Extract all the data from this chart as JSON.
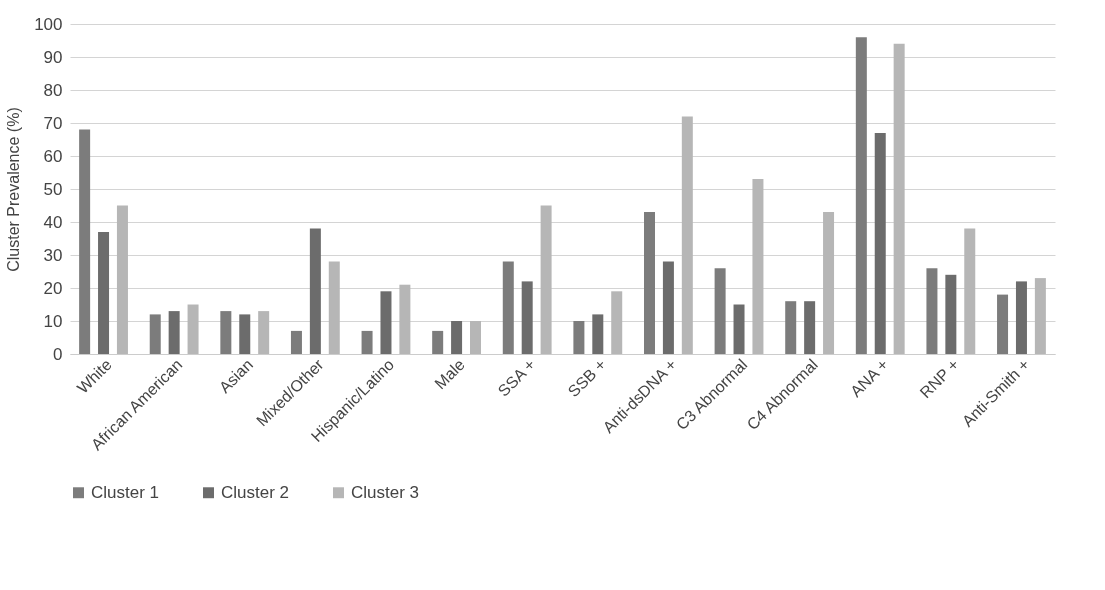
{
  "chart_data": {
    "type": "bar",
    "ylabel": "Cluster Prevalence (%)",
    "categories": [
      "White",
      "African American",
      "Asian",
      "Mixed/Other",
      "Hispanic/Latino",
      "Male",
      "SSA +",
      "SSB +",
      "Anti-dsDNA +",
      "C3 Abnormal",
      "C4 Abnormal",
      "ANA +",
      "RNP +",
      "Anti-Smith +"
    ],
    "series": [
      {
        "name": "Cluster 1",
        "color": "#7c7c7c",
        "values": [
          68,
          12,
          13,
          7,
          7,
          7,
          28,
          10,
          43,
          26,
          16,
          96,
          26,
          18
        ]
      },
      {
        "name": "Cluster 2",
        "color": "#6c6c6c",
        "values": [
          37,
          13,
          12,
          38,
          19,
          10,
          22,
          12,
          28,
          15,
          16,
          67,
          24,
          22
        ]
      },
      {
        "name": "Cluster 3",
        "color": "#b6b6b6",
        "values": [
          45,
          15,
          13,
          28,
          21,
          10,
          45,
          19,
          72,
          53,
          43,
          94,
          38,
          23
        ]
      }
    ],
    "ylim": [
      0,
      100
    ],
    "yticks": [
      0,
      10,
      20,
      30,
      40,
      50,
      60,
      70,
      80,
      90,
      100
    ],
    "grid": "y",
    "legend": "bottom"
  }
}
